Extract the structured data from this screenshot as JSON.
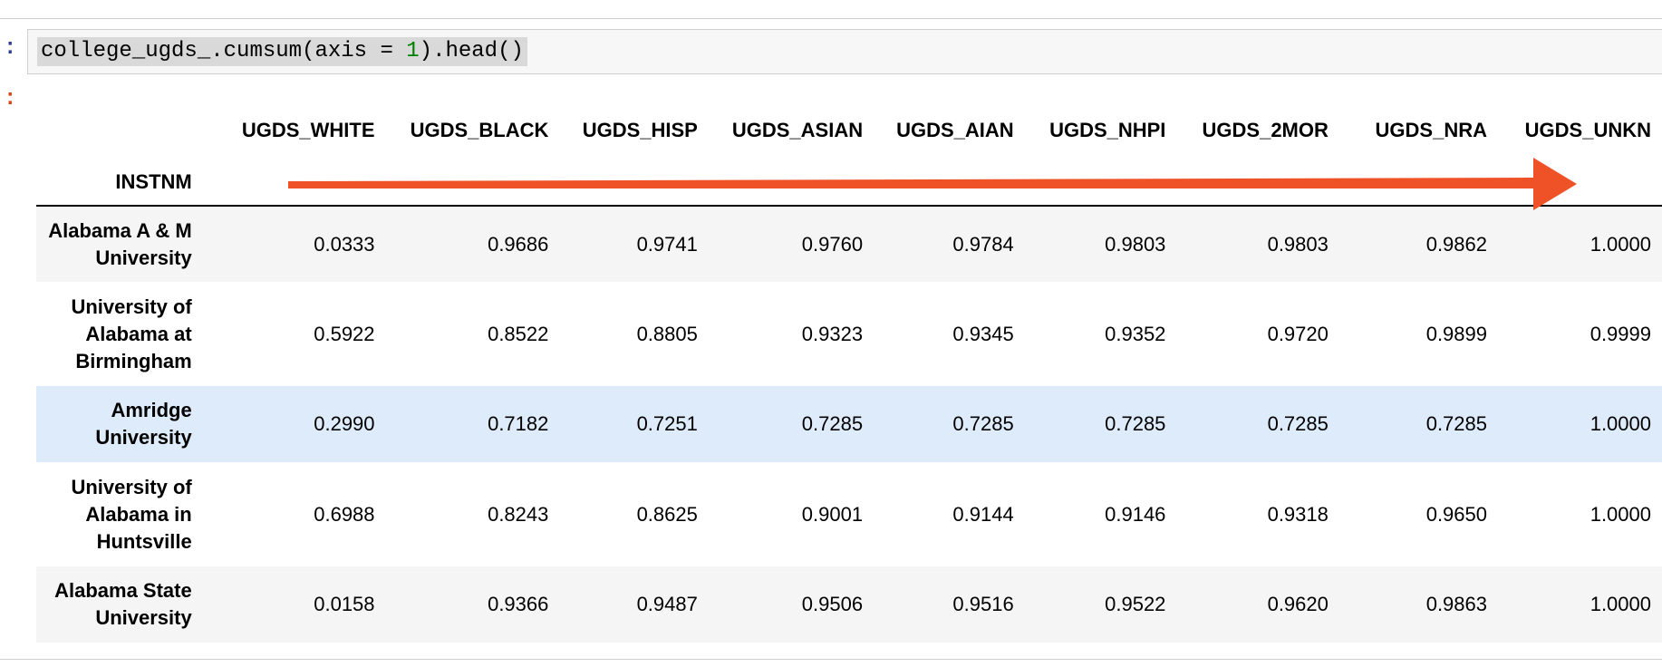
{
  "cell": {
    "in_prompt": ":",
    "out_prompt": ":",
    "code_prefix": "college_ugds_.cumsum(axis = ",
    "code_number": "1",
    "code_suffix": ").head()"
  },
  "table": {
    "columns": [
      "UGDS_WHITE",
      "UGDS_BLACK",
      "UGDS_HISP",
      "UGDS_ASIAN",
      "UGDS_AIAN",
      "UGDS_NHPI",
      "UGDS_2MOR",
      "UGDS_NRA",
      "UGDS_UNKN"
    ],
    "index_name": "INSTNM",
    "rows": [
      {
        "label_lines": [
          "Alabama A & M",
          "University"
        ],
        "values": [
          "0.0333",
          "0.9686",
          "0.9741",
          "0.9760",
          "0.9784",
          "0.9803",
          "0.9803",
          "0.9862",
          "1.0000"
        ]
      },
      {
        "label_lines": [
          "University of",
          "Alabama at",
          "Birmingham"
        ],
        "values": [
          "0.5922",
          "0.8522",
          "0.8805",
          "0.9323",
          "0.9345",
          "0.9352",
          "0.9720",
          "0.9899",
          "0.9999"
        ]
      },
      {
        "label_lines": [
          "Amridge",
          "University"
        ],
        "values": [
          "0.2990",
          "0.7182",
          "0.7251",
          "0.7285",
          "0.7285",
          "0.7285",
          "0.7285",
          "0.7285",
          "1.0000"
        ]
      },
      {
        "label_lines": [
          "University of",
          "Alabama in",
          "Huntsville"
        ],
        "values": [
          "0.6988",
          "0.8243",
          "0.8625",
          "0.9001",
          "0.9144",
          "0.9146",
          "0.9318",
          "0.9650",
          "1.0000"
        ]
      },
      {
        "label_lines": [
          "Alabama State",
          "University"
        ],
        "values": [
          "0.0158",
          "0.9366",
          "0.9487",
          "0.9506",
          "0.9516",
          "0.9522",
          "0.9620",
          "0.9863",
          "1.0000"
        ]
      }
    ]
  },
  "annotation": {
    "arrow_color": "#f05228",
    "arrow_icon": "right-arrow-icon"
  }
}
